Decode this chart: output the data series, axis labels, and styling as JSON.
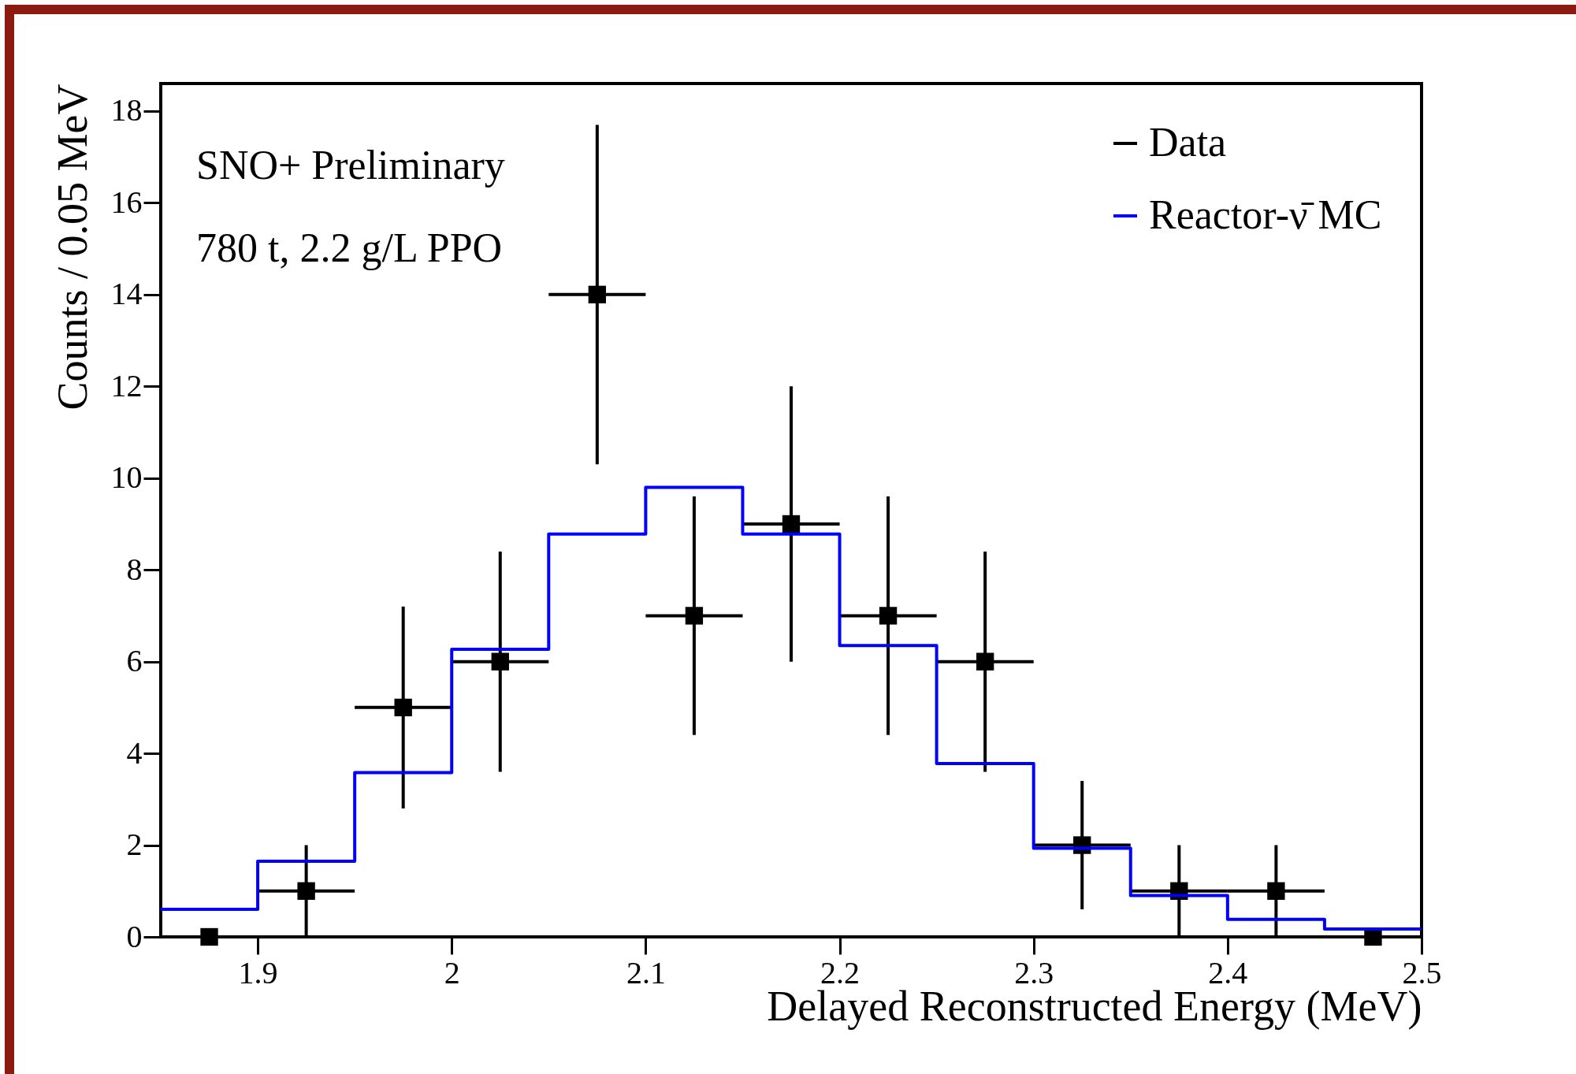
{
  "chart_data": {
    "type": "scatter",
    "xlabel": "Delayed Reconstructed Energy (MeV)",
    "ylabel": "Counts / 0.05 MeV",
    "xlim": [
      1.85,
      2.5
    ],
    "xticks": [
      1.9,
      2,
      2.1,
      2.2,
      2.3,
      2.4,
      2.5
    ],
    "ylim": [
      0,
      18.6
    ],
    "yticks": [
      0,
      2,
      4,
      6,
      8,
      10,
      12,
      14,
      16,
      18
    ],
    "grid": false,
    "legend": "top right",
    "annotations": [
      "SNO+ Preliminary",
      "780 t, 2.2 g/L PPO"
    ],
    "series": [
      {
        "name": "Data",
        "marker": "square",
        "color": "#000000",
        "x": [
          1.875,
          1.925,
          1.975,
          2.025,
          2.075,
          2.125,
          2.175,
          2.225,
          2.275,
          2.325,
          2.375,
          2.425,
          2.475
        ],
        "values": [
          0,
          1,
          5,
          6,
          14,
          7,
          9,
          7,
          6,
          2,
          1,
          1,
          0
        ],
        "errors": [
          null,
          [
            0,
            2
          ],
          [
            2.8,
            7.2
          ],
          [
            3.6,
            8.4
          ],
          [
            10.3,
            17.7
          ],
          [
            4.4,
            9.6
          ],
          [
            6,
            12
          ],
          [
            4.4,
            9.6
          ],
          [
            3.6,
            8.4
          ],
          [
            0.6,
            3.4
          ],
          [
            0,
            2
          ],
          [
            0,
            2
          ],
          null
        ],
        "xerrors": [
          null,
          0.025,
          0.025,
          0.025,
          0.025,
          0.025,
          0.025,
          0.025,
          0.025,
          0.025,
          0.025,
          0.025,
          null
        ]
      },
      {
        "name": "Reactor-ν̄ MC",
        "type": "step",
        "color": "#0000ff",
        "x": [
          1.85,
          1.9,
          1.95,
          2,
          2.05,
          2.1,
          2.15,
          2.2,
          2.25,
          2.3,
          2.35,
          2.4,
          2.45,
          2.5
        ],
        "values": [
          0.6,
          1.65,
          3.58,
          6.27,
          8.78,
          9.8,
          8.78,
          6.35,
          3.78,
          1.93,
          0.9,
          0.38,
          0.17,
          0.17
        ]
      }
    ]
  }
}
